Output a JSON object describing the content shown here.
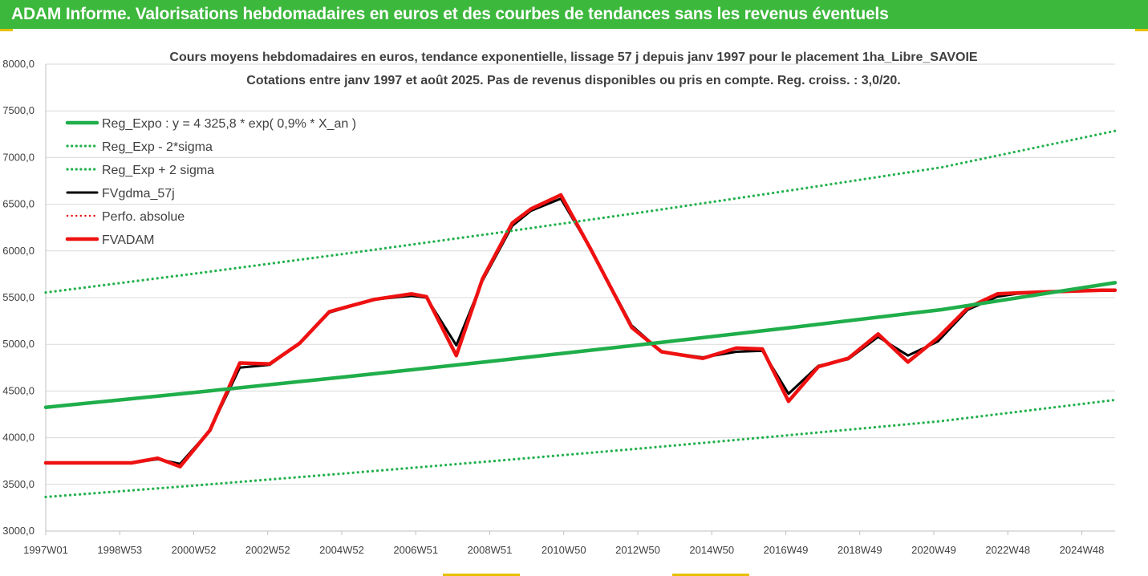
{
  "header": {
    "title": "ADAM Informe. Valorisations hebdomadaires en euros et des courbes de tendances sans les revenus éventuels"
  },
  "colors": {
    "header_bg": "#3cb83c",
    "trend_green": "#1fae4a",
    "sigma_green": "#22b14c",
    "fvgdma_black": "#000000",
    "perfo_red": "#e81010",
    "fvadam_red": "#ee1111",
    "corner_marker": "#e8c000"
  },
  "chart_data": {
    "type": "line",
    "title": "Cours moyens hebdomadaires en euros, tendance exponentielle, lissage 57 j depuis janv 1997 pour le placement 1ha_Libre_SAVOIE",
    "subtitle": "Cotations entre janv 1997 et août 2025.  Pas de revenus disponibles ou pris en compte. Reg. croiss. : 3,0/20.",
    "xlabel": "",
    "ylabel": "",
    "x_ticks": [
      "1997W01",
      "1998W53",
      "2000W52",
      "2002W52",
      "2004W52",
      "2006W51",
      "2008W51",
      "2010W50",
      "2012W50",
      "2014W50",
      "2016W49",
      "2018W49",
      "2020W49",
      "2022W48",
      "2024W48"
    ],
    "xlim": [
      1997.0,
      2025.65
    ],
    "ylim": [
      3000,
      8000
    ],
    "y_ticks": [
      "3000,0",
      "3500,0",
      "4000,0",
      "4500,0",
      "5000,0",
      "5500,0",
      "6000,0",
      "6500,0",
      "7000,0",
      "7500,0",
      "8000,0"
    ],
    "grid": "horizontal",
    "legend_position": "top-left",
    "series": [
      {
        "name": "Reg_Expo : y = 4 325,8 * exp( 0,9% *  X_an )",
        "style": "solid-thick",
        "color": "#1fae4a",
        "x": [
          1997.0,
          2001.0,
          2005.0,
          2009.0,
          2013.0,
          2017.0,
          2021.0,
          2025.65
        ],
        "y": [
          4326,
          4485,
          4650,
          4821,
          4998,
          5181,
          5371,
          5660
        ]
      },
      {
        "name": "Reg_Exp - 2*sigma",
        "style": "dotted",
        "color": "#22b14c",
        "x": [
          1997.0,
          2001.0,
          2005.0,
          2009.0,
          2013.0,
          2017.0,
          2021.0,
          2025.65
        ],
        "y": [
          3365,
          3488,
          3617,
          3750,
          3887,
          4030,
          4178,
          4405
        ]
      },
      {
        "name": "Reg_Exp + 2 sigma",
        "style": "dotted",
        "color": "#22b14c",
        "x": [
          1997.0,
          2001.0,
          2005.0,
          2009.0,
          2013.0,
          2017.0,
          2021.0,
          2025.65
        ],
        "y": [
          5555,
          5758,
          5969,
          6188,
          6415,
          6651,
          6895,
          7285
        ]
      },
      {
        "name": "FVgdma_57j",
        "style": "solid",
        "color": "#000000",
        "x": [
          1997.0,
          1998.5,
          1999.3,
          2000.0,
          2000.6,
          2001.4,
          2002.2,
          2003.0,
          2003.8,
          2004.6,
          2005.8,
          2006.8,
          2007.2,
          2008.0,
          2008.7,
          2009.5,
          2010.0,
          2010.8,
          2011.6,
          2012.7,
          2013.5,
          2014.6,
          2015.5,
          2016.2,
          2016.9,
          2017.7,
          2018.5,
          2019.3,
          2020.1,
          2020.9,
          2021.7,
          2022.5,
          2023.0,
          2023.7,
          2024.5,
          2025.3,
          2025.65
        ],
        "y": [
          3730,
          3730,
          3730,
          3770,
          3720,
          4080,
          4750,
          4780,
          5010,
          5340,
          5480,
          5520,
          5500,
          4990,
          5680,
          6270,
          6430,
          6560,
          6020,
          5200,
          4920,
          4860,
          4920,
          4930,
          4470,
          4770,
          4840,
          5080,
          4880,
          5030,
          5370,
          5510,
          5540,
          5560,
          5570,
          5580,
          5580
        ]
      },
      {
        "name": "Perfo. absolue",
        "style": "dotted",
        "color": "#e81010",
        "x": [
          1997.0,
          1998.5,
          1999.3,
          2000.0,
          2000.6,
          2001.4,
          2002.2,
          2003.0,
          2003.8,
          2004.6,
          2005.8,
          2006.8,
          2007.2,
          2008.0,
          2008.7,
          2009.5,
          2010.0,
          2010.8,
          2011.6,
          2012.7,
          2013.5,
          2014.6,
          2015.5,
          2016.2,
          2016.9,
          2017.7,
          2018.5,
          2019.3,
          2020.1,
          2020.9,
          2021.7,
          2022.5,
          2023.0,
          2023.7,
          2024.5,
          2025.3,
          2025.65
        ],
        "y": [
          3730,
          3730,
          3730,
          3780,
          3690,
          4080,
          4800,
          4790,
          5010,
          5350,
          5480,
          5540,
          5510,
          4880,
          5700,
          6300,
          6450,
          6600,
          6020,
          5180,
          4920,
          4850,
          4960,
          4950,
          4390,
          4760,
          4850,
          5110,
          4810,
          5070,
          5390,
          5540,
          5550,
          5560,
          5570,
          5580,
          5580
        ]
      },
      {
        "name": "FVADAM",
        "style": "solid-thick",
        "color": "#ee1111",
        "x": [
          1997.0,
          1998.5,
          1999.3,
          2000.0,
          2000.6,
          2001.4,
          2002.2,
          2003.0,
          2003.8,
          2004.6,
          2005.8,
          2006.8,
          2007.2,
          2008.0,
          2008.7,
          2009.5,
          2010.0,
          2010.8,
          2011.6,
          2012.7,
          2013.5,
          2014.6,
          2015.5,
          2016.2,
          2016.9,
          2017.7,
          2018.5,
          2019.3,
          2020.1,
          2020.9,
          2021.7,
          2022.5,
          2023.0,
          2023.7,
          2024.5,
          2025.3,
          2025.65
        ],
        "y": [
          3730,
          3730,
          3730,
          3780,
          3690,
          4080,
          4800,
          4790,
          5010,
          5350,
          5480,
          5540,
          5510,
          4880,
          5700,
          6300,
          6450,
          6600,
          6020,
          5180,
          4920,
          4850,
          4960,
          4950,
          4390,
          4760,
          4850,
          5110,
          4810,
          5070,
          5390,
          5540,
          5550,
          5560,
          5570,
          5580,
          5580
        ]
      }
    ]
  }
}
